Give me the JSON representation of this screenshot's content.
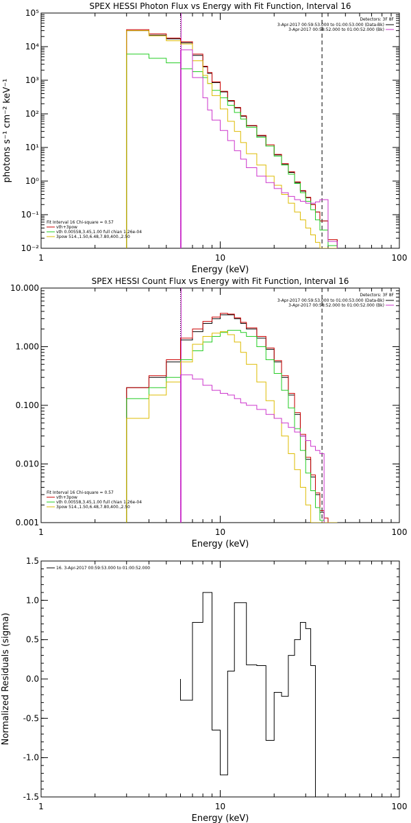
{
  "chart_data": [
    {
      "type": "line",
      "title": "SPEX HESSI Photon Flux vs Energy with Fit Function, Interval 16",
      "xlabel": "Energy (keV)",
      "ylabel": "photons s⁻¹ cm⁻² keV⁻¹",
      "xscale": "log",
      "yscale": "log",
      "xlim": [
        1,
        100
      ],
      "ylim": [
        0.01,
        100000
      ],
      "xticks": [
        1,
        10,
        100
      ],
      "xtick_labels": [
        "1",
        "10",
        "100"
      ],
      "yticks": [
        0.01,
        0.1,
        1,
        10,
        100,
        1000,
        10000,
        100000
      ],
      "ytick_labels": [
        "10⁻²",
        "10⁻¹",
        "10⁰",
        "10¹",
        "10²",
        "10³",
        "10⁴",
        "10⁵"
      ],
      "vlines": [
        {
          "x": 6.0,
          "style": "dotted",
          "color": "#000000"
        },
        {
          "x": 37.0,
          "style": "dashed",
          "color": "#000000"
        },
        {
          "x": 6.05,
          "style": "solid",
          "color": "#cc33cc"
        }
      ],
      "legend_upper": {
        "header": "Detectors: 3F 8F",
        "entries": [
          {
            "text": "3-Apr-2017 00:59:53.000 to 01:00:53.000 (Data-Bk)",
            "color": "#000000"
          },
          {
            "text": "3-Apr-2017 00:58:52.000 to 01:00:52.000 (Bk)",
            "color": "#cc33cc"
          }
        ],
        "placement": "top-right"
      },
      "legend_lower": {
        "header": "Fit Interval 16   Chi-square = 0.57",
        "entries": [
          {
            "text": "vth+3pow",
            "color": "#cc0000"
          },
          {
            "text": "vth 0.00558,3.45,1.00   full chian 1.26e-04",
            "color": "#22cc22"
          },
          {
            "text": "3pow 514.,1.50,6.48,7.80,400.,2.50",
            "color": "#ddbb00"
          }
        ],
        "placement": "bottom-left"
      },
      "step_edges": [
        3.0,
        4.0,
        5.0,
        6.0,
        7.0,
        8.0,
        8.5,
        9.0,
        10.0,
        11.0,
        12.0,
        13.0,
        14.0,
        16.0,
        18.0,
        20.0,
        22.0,
        24.0,
        26.0,
        28.0,
        30.0,
        32.0,
        34.0,
        36.0,
        40.0,
        45.0
      ],
      "series": [
        {
          "name": "Data-Bk",
          "color": "#000000",
          "values": [
            30000,
            22000,
            17000,
            13000,
            5500,
            2500,
            1600,
            850,
            450,
            240,
            150,
            85,
            44,
            22,
            11,
            6,
            3.2,
            1.8,
            0.9,
            0.5,
            0.32,
            0.2,
            0.12,
            0.065,
            0.018
          ]
        },
        {
          "name": "vth+3pow",
          "color": "#cc0000",
          "values": [
            32000,
            24000,
            18000,
            14000,
            6000,
            2600,
            1700,
            900,
            470,
            250,
            155,
            88,
            45,
            23,
            12,
            6.2,
            3.3,
            1.9,
            0.95,
            0.52,
            0.33,
            0.2,
            0.12,
            0.065,
            0.018
          ]
        },
        {
          "name": "vth",
          "color": "#22cc22",
          "values": [
            6000,
            4500,
            3300,
            2200,
            1800,
            1200,
            800,
            500,
            300,
            180,
            110,
            70,
            40,
            20,
            11,
            5.5,
            3.0,
            1.6,
            0.85,
            0.45,
            0.25,
            0.14,
            0.07,
            0.035,
            0.012
          ]
        },
        {
          "name": "3pow",
          "color": "#ddbb00",
          "values": [
            30000,
            21000,
            15000,
            12000,
            3800,
            1400,
            800,
            350,
            140,
            60,
            30,
            14,
            6.5,
            3.0,
            1.4,
            0.75,
            0.4,
            0.22,
            0.12,
            0.07,
            0.04,
            0.025,
            0.015,
            0.01,
            0.01
          ]
        },
        {
          "name": "Bk",
          "color": "#cc33cc",
          "values": [
            null,
            null,
            null,
            8000,
            1200,
            300,
            130,
            65,
            32,
            16,
            8,
            4.5,
            2.5,
            1.4,
            0.9,
            0.6,
            0.45,
            0.35,
            0.28,
            0.25,
            0.22,
            0.22,
            0.24,
            0.28,
            0.016
          ]
        }
      ]
    },
    {
      "type": "line",
      "title": "SPEX HESSI Count Flux vs Energy with Fit Function, Interval 16",
      "xlabel": "Energy (keV)",
      "ylabel": "",
      "xscale": "log",
      "yscale": "log",
      "xlim": [
        1,
        100
      ],
      "ylim": [
        0.001,
        10
      ],
      "xticks": [
        1,
        10,
        100
      ],
      "xtick_labels": [
        "1",
        "10",
        "100"
      ],
      "yticks": [
        0.001,
        0.01,
        0.1,
        1,
        10
      ],
      "ytick_labels": [
        "0.001",
        "0.010",
        "0.100",
        "1.000",
        "10.000"
      ],
      "vlines": [
        {
          "x": 6.0,
          "style": "dotted",
          "color": "#000000"
        },
        {
          "x": 37.0,
          "style": "dashed",
          "color": "#000000"
        },
        {
          "x": 6.05,
          "style": "solid",
          "color": "#cc33cc"
        }
      ],
      "legend_upper": {
        "header": "Detectors: 3F 8F",
        "entries": [
          {
            "text": "3-Apr-2017 00:59:53.000 to 01:00:53.000 (Data-Bk)",
            "color": "#000000"
          },
          {
            "text": "3-Apr-2017 00:58:52.000 to 01:00:52.000 (Bk)",
            "color": "#cc33cc"
          }
        ],
        "placement": "top-right"
      },
      "legend_lower": {
        "header": "Fit Interval 16   Chi-square = 0.57",
        "entries": [
          {
            "text": "vth+3pow",
            "color": "#cc0000"
          },
          {
            "text": "vth 0.00558,3.45,1.00   full chian 1.26e-04",
            "color": "#22cc22"
          },
          {
            "text": "3pow 514.,1.50,6.48,7.80,400.,2.50",
            "color": "#ddbb00"
          }
        ],
        "placement": "bottom-left"
      },
      "step_edges": [
        3.0,
        4.0,
        5.0,
        6.0,
        7.0,
        8.0,
        9.0,
        10.0,
        11.0,
        12.0,
        13.0,
        14.0,
        16.0,
        18.0,
        20.0,
        22.0,
        24.0,
        26.0,
        28.0,
        30.0,
        32.0,
        34.0,
        36.0,
        38.0,
        40.0,
        45.0
      ],
      "series": [
        {
          "name": "Data-Bk",
          "color": "#000000",
          "values": [
            0.2,
            0.3,
            0.55,
            1.3,
            1.8,
            2.5,
            3.0,
            3.5,
            3.5,
            3.0,
            2.5,
            2.0,
            1.4,
            0.9,
            0.55,
            0.3,
            0.15,
            0.07,
            0.03,
            0.012,
            0.006,
            0.003,
            0.0015,
            0.001,
            0.001
          ]
        },
        {
          "name": "vth+3pow",
          "color": "#cc0000",
          "values": [
            0.2,
            0.32,
            0.6,
            1.4,
            2.0,
            2.7,
            3.2,
            3.7,
            3.6,
            3.1,
            2.6,
            2.1,
            1.5,
            0.95,
            0.58,
            0.32,
            0.16,
            0.075,
            0.032,
            0.013,
            0.0065,
            0.0032,
            0.0016,
            0.0012,
            0.001
          ]
        },
        {
          "name": "vth",
          "color": "#22cc22",
          "values": [
            0.13,
            0.2,
            0.3,
            0.6,
            0.85,
            1.2,
            1.5,
            1.75,
            1.9,
            1.9,
            1.75,
            1.5,
            1.0,
            0.6,
            0.35,
            0.18,
            0.09,
            0.04,
            0.017,
            0.007,
            0.0035,
            0.0018,
            0.0011,
            0.001,
            0.001
          ]
        },
        {
          "name": "3pow",
          "color": "#ddbb00",
          "values": [
            0.06,
            0.15,
            0.25,
            0.55,
            1.1,
            1.5,
            1.7,
            1.8,
            1.6,
            1.2,
            0.8,
            0.5,
            0.25,
            0.12,
            0.06,
            0.03,
            0.015,
            0.008,
            0.004,
            0.002,
            0.001,
            0.001,
            0.001,
            0.001,
            0.001
          ]
        },
        {
          "name": "Bk",
          "color": "#cc33cc",
          "values": [
            null,
            null,
            null,
            0.33,
            0.28,
            0.22,
            0.18,
            0.16,
            0.15,
            0.13,
            0.11,
            0.1,
            0.085,
            0.07,
            0.06,
            0.05,
            0.042,
            0.035,
            0.03,
            0.025,
            0.02,
            0.017,
            0.015,
            null,
            null
          ]
        }
      ]
    },
    {
      "type": "line",
      "title": "",
      "xlabel": "Energy (keV)",
      "ylabel": "Normalized Residuals (sigma)",
      "xscale": "log",
      "yscale": "linear",
      "xlim": [
        1,
        100
      ],
      "ylim": [
        -1.5,
        1.5
      ],
      "xticks": [
        1,
        10,
        100
      ],
      "xtick_labels": [
        "1",
        "10",
        "100"
      ],
      "yticks": [
        -1.5,
        -1.0,
        -0.5,
        0.0,
        0.5,
        1.0,
        1.5
      ],
      "ytick_labels": [
        "-1.5",
        "-1.0",
        "-0.5",
        "0.0",
        "0.5",
        "1.0",
        "1.5"
      ],
      "vlines": [],
      "legend_lower": {
        "header": "",
        "entries": [
          {
            "text": "16.  3-Apr-2017 00:59:53.000 to 01:00:52.000",
            "color": "#000000"
          }
        ],
        "placement": "top-left"
      },
      "step_edges": [
        6.0,
        7.0,
        8.0,
        9.0,
        10.0,
        11.0,
        12.0,
        14.0,
        16.0,
        18.0,
        20.0,
        22.0,
        24.0,
        26.0,
        28.0,
        30.0,
        32.0,
        34.0,
        37.0
      ],
      "series": [
        {
          "name": "16.  3-Apr-2017 00:59:53.000 to 01:00:52.000",
          "color": "#000000",
          "values": [
            -0.27,
            0.72,
            1.1,
            -0.65,
            -1.22,
            0.1,
            0.97,
            0.18,
            0.17,
            -0.78,
            -0.17,
            -0.22,
            0.3,
            0.5,
            0.72,
            0.64,
            0.17,
            -1.5
          ]
        }
      ]
    }
  ]
}
